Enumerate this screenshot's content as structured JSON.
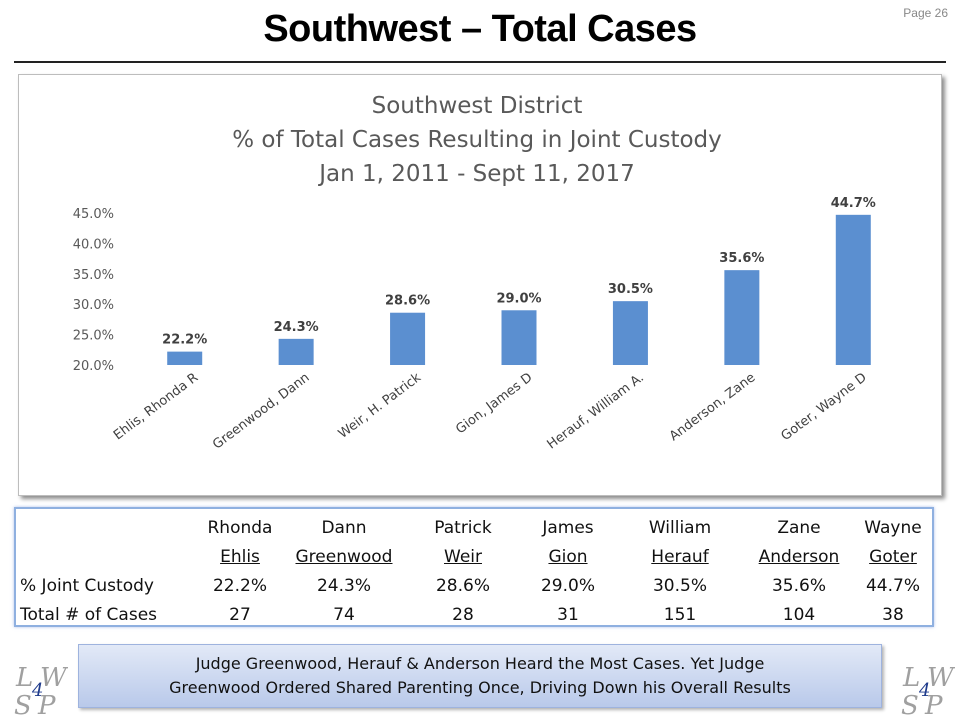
{
  "page": {
    "number_label": "Page 26",
    "title": "Southwest – Total Cases"
  },
  "chart_data": {
    "type": "bar",
    "title_lines": [
      "Southwest District",
      "% of Total Cases Resulting in Joint Custody",
      "Jan 1, 2011 - Sept 11, 2017"
    ],
    "categories": [
      "Ehlis, Rhonda R",
      "Greenwood, Dann",
      "Weir, H. Patrick",
      "Gion, James D",
      "Herauf, William A.",
      "Anderson, Zane",
      "Goter, Wayne D"
    ],
    "values": [
      22.2,
      24.3,
      28.6,
      29.0,
      30.5,
      35.6,
      44.7
    ],
    "data_labels": [
      "22.2%",
      "24.3%",
      "28.6%",
      "29.0%",
      "30.5%",
      "35.6%",
      "44.7%"
    ],
    "y_ticks": [
      20.0,
      25.0,
      30.0,
      35.0,
      40.0,
      45.0
    ],
    "y_tick_labels": [
      "20.0%",
      "25.0%",
      "30.0%",
      "35.0%",
      "40.0%",
      "45.0%"
    ],
    "ylim": [
      20,
      45
    ],
    "bar_color": "#5b8fd0",
    "grid": false,
    "xlabel": "",
    "ylabel": ""
  },
  "table": {
    "first_names": [
      "Rhonda",
      "Dann",
      "Patrick",
      "James",
      "William",
      "Zane",
      "Wayne"
    ],
    "last_names": [
      "Ehlis",
      "Greenwood",
      "Weir",
      "Gion",
      "Herauf",
      "Anderson",
      "Goter"
    ],
    "rows": [
      {
        "label": "% Joint Custody",
        "values": [
          "22.2%",
          "24.3%",
          "28.6%",
          "29.0%",
          "30.5%",
          "35.6%",
          "44.7%"
        ]
      },
      {
        "label": "Total # of Cases",
        "values": [
          "27",
          "74",
          "28",
          "31",
          "151",
          "104",
          "38"
        ]
      }
    ]
  },
  "callout": {
    "line1": "Judge Greenwood, Herauf & Anderson Heard the Most Cases. Yet Judge",
    "line2": "Greenwood Ordered Shared Parenting Once, Driving Down his Overall Results"
  },
  "logo": {
    "left": {
      "tl": "L",
      "tr": "W",
      "bl": "S",
      "br": "P",
      "center": "4"
    },
    "right": {
      "tl": "L",
      "tr": "W",
      "bl": "S",
      "br": "P",
      "center": "4"
    },
    "letter_color": "#a0a0a0",
    "center_color": "#1f3b8c"
  }
}
